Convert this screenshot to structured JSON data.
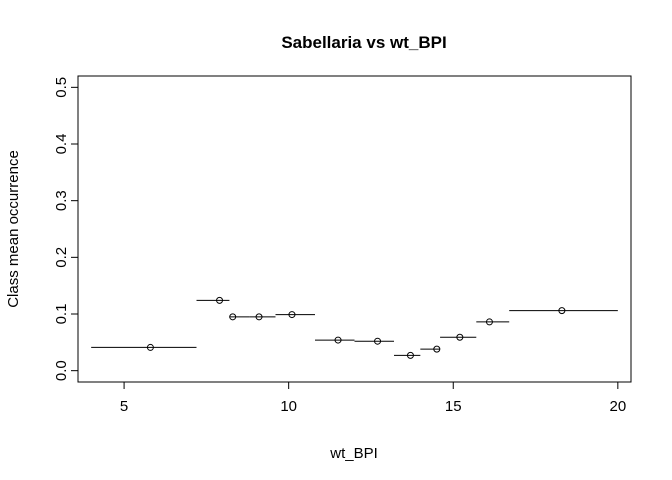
{
  "chart_data": {
    "type": "scatter",
    "title": "Sabellaria vs wt_BPI",
    "xlabel": "wt_BPI",
    "ylabel": "Class mean occurrence",
    "xlim": [
      3.6,
      20.4
    ],
    "ylim": [
      -0.02,
      0.52
    ],
    "xticks": [
      "5",
      "10",
      "15",
      "20"
    ],
    "yticks": [
      "0.0",
      "0.1",
      "0.2",
      "0.3",
      "0.4",
      "0.5"
    ],
    "grid": false,
    "legend": "none",
    "series": [
      {
        "points": [
          {
            "x": 5.8,
            "y": 0.041,
            "xmin": 4.0,
            "xmax": 7.2
          },
          {
            "x": 7.9,
            "y": 0.124,
            "xmin": 7.2,
            "xmax": 8.2
          },
          {
            "x": 8.3,
            "y": 0.095,
            "xmin": 8.2,
            "xmax": 8.8
          },
          {
            "x": 9.1,
            "y": 0.095,
            "xmin": 8.8,
            "xmax": 9.6
          },
          {
            "x": 10.1,
            "y": 0.099,
            "xmin": 9.6,
            "xmax": 10.8
          },
          {
            "x": 11.5,
            "y": 0.054,
            "xmin": 10.8,
            "xmax": 12.0
          },
          {
            "x": 12.7,
            "y": 0.052,
            "xmin": 12.0,
            "xmax": 13.2
          },
          {
            "x": 13.7,
            "y": 0.027,
            "xmin": 13.2,
            "xmax": 14.0
          },
          {
            "x": 14.5,
            "y": 0.038,
            "xmin": 14.0,
            "xmax": 14.6
          },
          {
            "x": 15.2,
            "y": 0.059,
            "xmin": 14.6,
            "xmax": 15.7
          },
          {
            "x": 16.1,
            "y": 0.086,
            "xmin": 15.7,
            "xmax": 16.7
          },
          {
            "x": 18.3,
            "y": 0.106,
            "xmin": 16.7,
            "xmax": 20.0
          }
        ]
      }
    ]
  }
}
